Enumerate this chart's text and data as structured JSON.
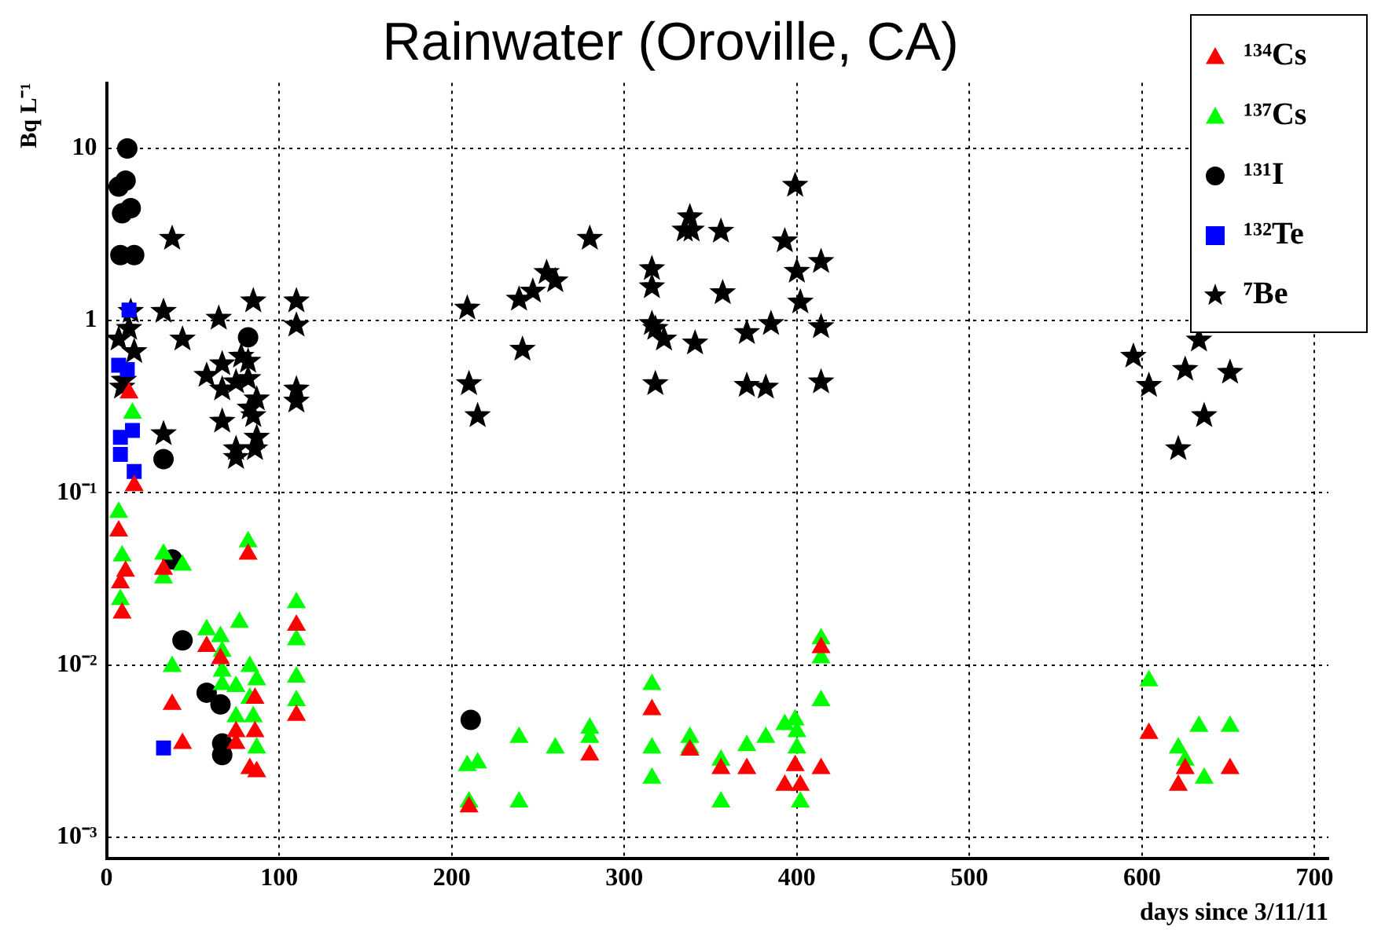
{
  "chart_data": {
    "type": "scatter",
    "title": "Rainwater (Oroville, CA)",
    "xlabel": "days since 3/11/11",
    "ylabel": "Bq L⁻¹",
    "log": "y",
    "grid": true,
    "legend": "top right",
    "xlim": [
      0,
      708
    ],
    "xticks": [
      0,
      100,
      200,
      300,
      400,
      500,
      600,
      700
    ],
    "ylim": [
      0.00075,
      24
    ],
    "yticks": [
      {
        "value": 0.001,
        "label": "10⁻³"
      },
      {
        "value": 0.01,
        "label": "10⁻²"
      },
      {
        "value": 0.1,
        "label": "10⁻¹"
      },
      1,
      10
    ],
    "series": [
      {
        "name": "¹³⁴Cs",
        "color": "#ff0000",
        "marker": "triangle",
        "x": [
          7,
          11,
          8,
          9,
          13,
          16,
          33,
          38,
          44,
          58,
          66,
          75,
          75,
          82,
          86,
          86,
          83,
          87,
          110,
          110,
          210,
          280,
          316,
          338,
          356,
          371,
          393,
          399,
          402,
          414,
          414,
          604,
          621,
          625,
          651
        ],
        "values": [
          0.06,
          0.035,
          0.03,
          0.02,
          0.38,
          0.11,
          0.036,
          0.0059,
          0.0035,
          0.0128,
          0.0109,
          0.0041,
          0.0035,
          0.044,
          0.0064,
          0.0041,
          0.0025,
          0.0024,
          0.017,
          0.0051,
          0.0015,
          0.003,
          0.0055,
          0.0032,
          0.0025,
          0.0025,
          0.002,
          0.0026,
          0.002,
          0.0126,
          0.0025,
          0.004,
          0.002,
          0.0025,
          0.0025
        ]
      },
      {
        "name": "¹³⁷Cs",
        "color": "#00ff00",
        "marker": "triangle",
        "x": [
          7,
          9,
          8,
          15,
          33,
          33,
          44,
          82,
          38,
          58,
          66,
          67,
          67,
          67,
          77,
          75,
          75,
          83,
          83,
          87,
          85,
          87,
          110,
          110,
          110,
          110,
          209,
          215,
          210,
          239,
          239,
          260,
          280,
          280,
          316,
          316,
          316,
          338,
          338,
          356,
          356,
          371,
          382,
          393,
          399,
          400,
          400,
          402,
          414,
          414,
          414,
          604,
          621,
          625,
          633,
          636,
          651
        ],
        "values": [
          0.077,
          0.043,
          0.024,
          0.29,
          0.044,
          0.032,
          0.038,
          0.052,
          0.0098,
          0.016,
          0.0146,
          0.012,
          0.0092,
          0.0077,
          0.0177,
          0.0075,
          0.005,
          0.0098,
          0.0064,
          0.0082,
          0.005,
          0.0033,
          0.023,
          0.014,
          0.0085,
          0.0062,
          0.0026,
          0.0027,
          0.0016,
          0.0038,
          0.0016,
          0.0033,
          0.0043,
          0.0038,
          0.0077,
          0.0033,
          0.0022,
          0.0038,
          0.0033,
          0.0028,
          0.0016,
          0.0034,
          0.0038,
          0.0045,
          0.0048,
          0.0041,
          0.0033,
          0.0016,
          0.0142,
          0.011,
          0.0062,
          0.0081,
          0.0033,
          0.0028,
          0.0044,
          0.0022,
          0.0044
        ]
      },
      {
        "name": "¹³¹I",
        "color": "#000000",
        "marker": "circle",
        "x": [
          12,
          11,
          7,
          14,
          9,
          8,
          16,
          82,
          33,
          38,
          44,
          58,
          66,
          67,
          67,
          211
        ],
        "values": [
          10,
          6.5,
          6,
          4.5,
          4.2,
          2.4,
          2.4,
          0.8,
          0.157,
          0.041,
          0.0139,
          0.0069,
          0.0059,
          0.0035,
          0.003,
          0.0048
        ]
      },
      {
        "name": "¹³²Te",
        "color": "#0000ff",
        "marker": "square",
        "x": [
          13,
          7,
          12,
          15,
          8,
          8,
          16,
          33
        ],
        "values": [
          1.15,
          0.55,
          0.52,
          0.23,
          0.21,
          0.167,
          0.133,
          0.0033
        ]
      },
      {
        "name": "⁷Be",
        "color": "#000000",
        "marker": "star",
        "x": [
          38,
          33,
          14,
          85,
          110,
          110,
          65,
          44,
          13,
          7,
          16,
          58,
          67,
          67,
          75,
          78,
          82,
          82,
          87,
          83,
          85,
          67,
          87,
          75,
          75,
          86,
          33,
          110,
          110,
          10,
          9,
          209,
          210,
          215,
          239,
          241,
          247,
          255,
          260,
          280,
          316,
          316,
          316,
          318,
          323,
          318,
          335,
          338,
          339,
          356,
          341,
          357,
          371,
          371,
          382,
          385,
          393,
          399,
          400,
          402,
          414,
          414,
          414,
          595,
          604,
          633,
          625,
          651,
          636,
          621
        ],
        "values": [
          3,
          1.13,
          1.13,
          1.3,
          1.3,
          0.94,
          1.03,
          0.78,
          0.9,
          0.78,
          0.66,
          0.48,
          0.56,
          0.4,
          0.44,
          0.62,
          0.58,
          0.46,
          0.35,
          0.31,
          0.28,
          0.26,
          0.21,
          0.18,
          0.16,
          0.18,
          0.22,
          0.4,
          0.34,
          0.45,
          0.41,
          1.18,
          0.43,
          0.28,
          1.33,
          0.68,
          1.48,
          1.9,
          1.7,
          3,
          2,
          1.57,
          0.96,
          0.9,
          0.78,
          0.43,
          3.35,
          4,
          3.35,
          3.3,
          0.74,
          1.45,
          0.85,
          0.42,
          0.41,
          0.96,
          2.9,
          6.1,
          1.93,
          1.28,
          2.2,
          0.92,
          0.44,
          0.62,
          0.42,
          0.77,
          0.52,
          0.5,
          0.28,
          0.18
        ]
      }
    ]
  }
}
